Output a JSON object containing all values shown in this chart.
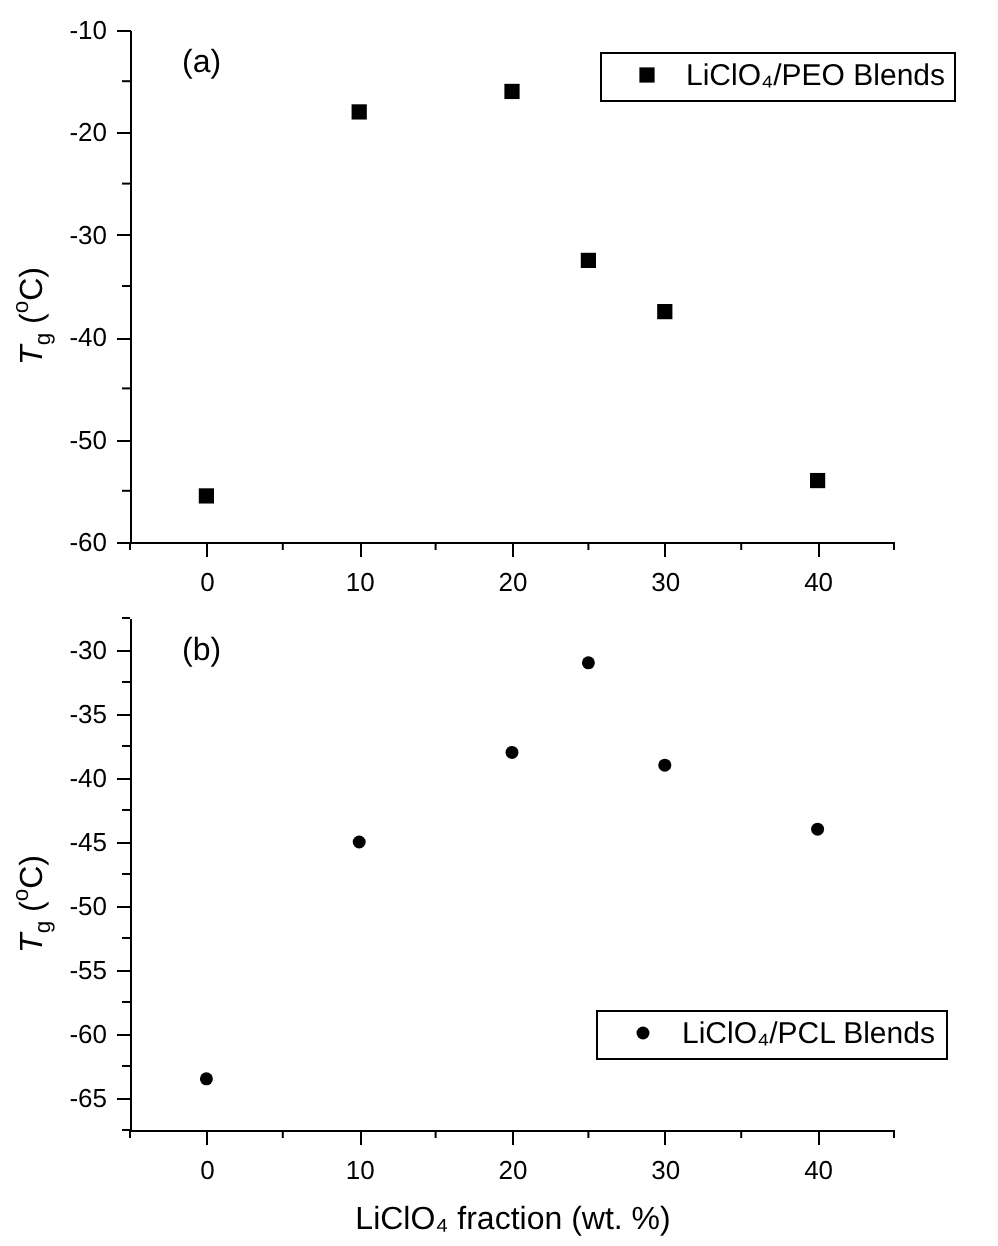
{
  "chart_data": [
    {
      "type": "scatter",
      "ylabel": "T$_{g}$ ($^{o}$C)",
      "annotations": [
        "(a)"
      ],
      "x": [
        0,
        10,
        20,
        25,
        30,
        40
      ],
      "series": [
        {
          "name": "LiClO₄/PEO Blends",
          "color": "#000000",
          "values": [
            -55.5,
            -18,
            -16,
            -32.5,
            -37.5,
            -54
          ]
        }
      ],
      "marker": "square",
      "legend": "top right",
      "grid": false,
      "xlim": [
        -5,
        45
      ],
      "xticks": [
        {
          "value": -5,
          "label": null
        },
        0,
        {
          "value": 5,
          "label": null
        },
        10,
        {
          "value": 15,
          "label": null
        },
        20,
        {
          "value": 25,
          "label": null
        },
        30,
        {
          "value": 35,
          "label": null
        },
        40,
        {
          "value": 45,
          "label": null
        }
      ],
      "ylim": [
        -60,
        -10
      ],
      "yticks": [
        -60,
        {
          "value": -55,
          "label": null
        },
        -50,
        {
          "value": -45,
          "label": null
        },
        -40,
        {
          "value": -35,
          "label": null
        },
        -30,
        {
          "value": -25,
          "label": null
        },
        -20,
        {
          "value": -15,
          "label": null
        },
        -10
      ]
    },
    {
      "type": "scatter",
      "xlabel": "LiClO₄ fraction (wt. %)",
      "ylabel": "T$_{g}$ ($^{o}$C)",
      "annotations": [
        "(b)"
      ],
      "x": [
        0,
        10,
        20,
        25,
        30,
        40
      ],
      "series": [
        {
          "name": "LiClO₄/PCL Blends",
          "color": "#000000",
          "values": [
            -63.5,
            -45,
            -38,
            -31,
            -39,
            -44
          ]
        }
      ],
      "marker": "circle",
      "legend": "bottom right",
      "grid": false,
      "xlim": [
        -5,
        45
      ],
      "xticks": [
        {
          "value": -5,
          "label": null
        },
        0,
        {
          "value": 5,
          "label": null
        },
        10,
        {
          "value": 15,
          "label": null
        },
        20,
        {
          "value": 25,
          "label": null
        },
        30,
        {
          "value": 35,
          "label": null
        },
        40,
        {
          "value": 45,
          "label": null
        }
      ],
      "ylim": [
        -67.5,
        -27.5
      ],
      "yticks": [
        {
          "value": -67.5,
          "label": null
        },
        -65,
        {
          "value": -62.5,
          "label": null
        },
        -60,
        {
          "value": -57.5,
          "label": null
        },
        -55,
        {
          "value": -52.5,
          "label": null
        },
        -50,
        {
          "value": -47.5,
          "label": null
        },
        -45,
        {
          "value": -42.5,
          "label": null
        },
        -40,
        {
          "value": -37.5,
          "label": null
        },
        -35,
        {
          "value": -32.5,
          "label": null
        },
        -30,
        {
          "value": -27.5,
          "label": null
        }
      ]
    }
  ]
}
